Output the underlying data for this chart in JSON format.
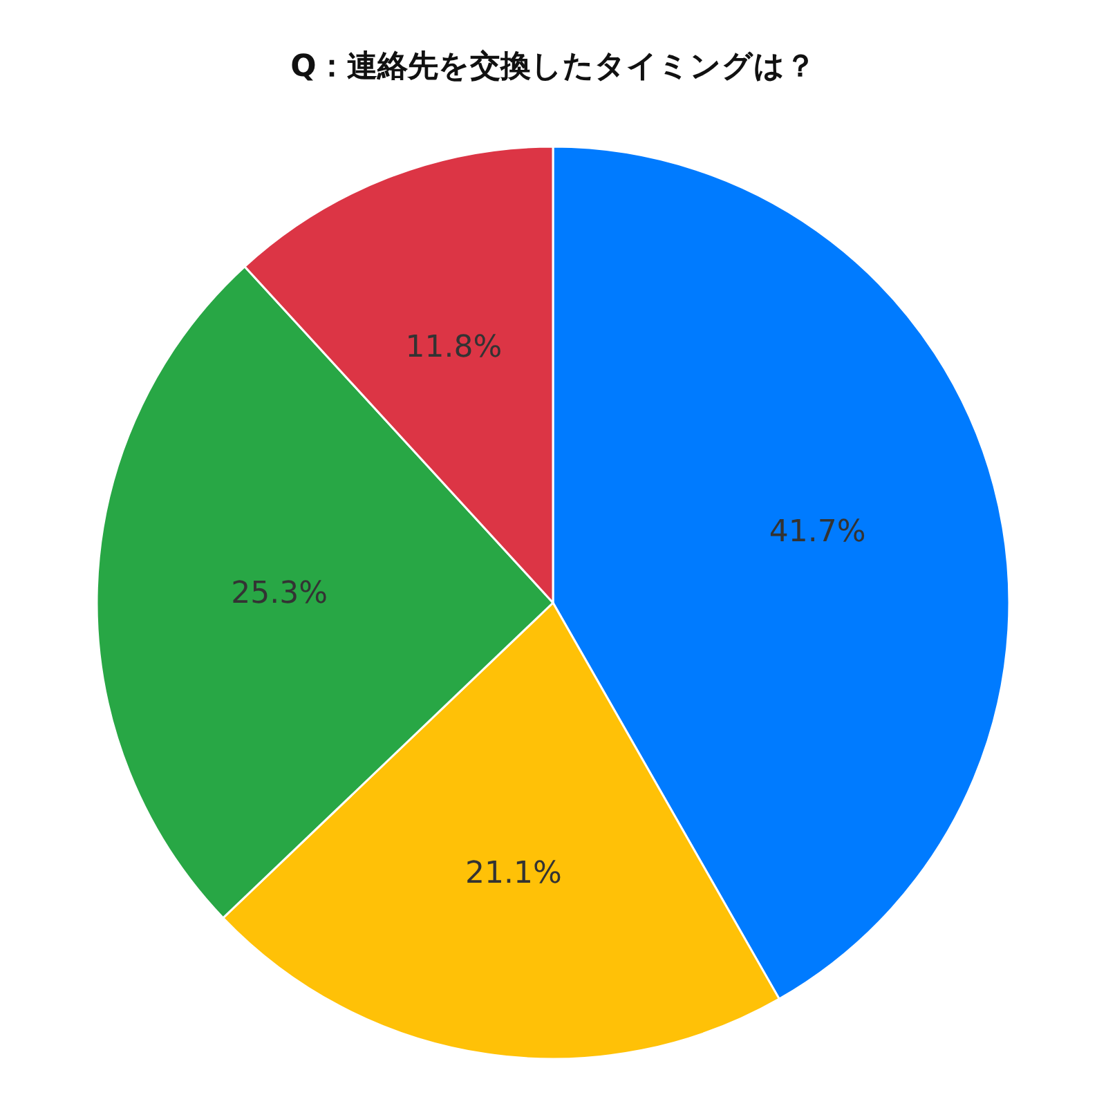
{
  "chart_data": {
    "type": "pie",
    "title": "Q：連絡先を交換したタイミングは？",
    "categories": [
      null,
      null,
      null,
      null
    ],
    "values": [
      41.7,
      21.1,
      25.3,
      11.8
    ],
    "colors": [
      "#007bff",
      "#ffc107",
      "#28a745",
      "#dc3545"
    ],
    "value_labels": [
      "41.7%",
      "21.1%",
      "25.3%",
      "11.8%"
    ]
  }
}
